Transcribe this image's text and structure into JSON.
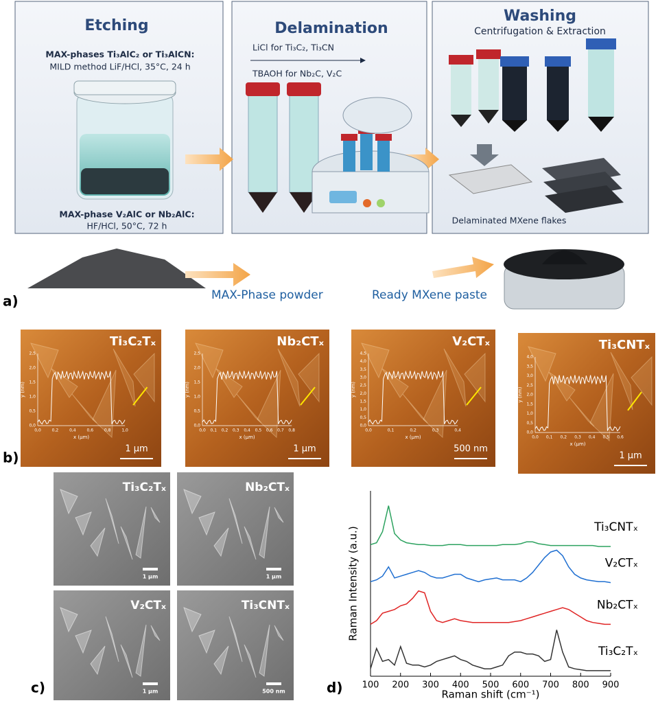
{
  "panel_a": {
    "label": "a)",
    "etching": {
      "title": "Etching",
      "line1": "MAX-phases Ti₃AlC₂ or Ti₃AlCN:",
      "line2": "MILD method LiF/HCl, 35°C, 24 h",
      "line3": "MAX-phase V₂AlC or Nb₂AlC:",
      "line4": "HF/HCl, 50°C, 72 h"
    },
    "delamination": {
      "title": "Delamination",
      "line1": "LiCl for Ti₃C₂, Ti₃CN",
      "line2": "TBAOH for Nb₂C, V₂C"
    },
    "washing": {
      "title": "Washing",
      "subtitle": "Centrifugation & Extraction",
      "caption": "Delaminated MXene flakes"
    },
    "powder": "MAX-Phase powder",
    "paste": "Ready MXene paste"
  },
  "panel_b": {
    "label": "b)",
    "ylabel": "y (nm)",
    "xlabel": "x (µm)",
    "images": [
      {
        "title": "Ti₃C₂Tₓ",
        "scale": "1 µm",
        "yticks": [
          "0,0",
          "0,5",
          "1,0",
          "1,5",
          "2,0",
          "2,5"
        ],
        "xticks": [
          "0,0",
          "0,2",
          "0,4",
          "0,6",
          "0,8",
          "1,0"
        ]
      },
      {
        "title": "Nb₂CTₓ",
        "scale": "1 µm",
        "yticks": [
          "0,0",
          "0,5",
          "1,0",
          "1,5",
          "2,0",
          "2,5"
        ],
        "xticks": [
          "0,0",
          "0,1",
          "0,2",
          "0,3",
          "0,4",
          "0,5",
          "0,6",
          "0,7",
          "0,8"
        ]
      },
      {
        "title": "V₂CTₓ",
        "scale": "500 nm",
        "yticks": [
          "0,0",
          "0,5",
          "1,0",
          "1,5",
          "2,0",
          "2,5",
          "3,0",
          "3,5",
          "4,0",
          "4,5"
        ],
        "xticks": [
          "0,0",
          "0,1",
          "0,2",
          "0,3",
          "0,4"
        ]
      },
      {
        "title": "Ti₃CNTₓ",
        "scale": "1 µm",
        "yticks": [
          "0,0",
          "0,5",
          "1,0",
          "1,5",
          "2,0",
          "2,5",
          "3,0",
          "3,5",
          "4,0"
        ],
        "xticks": [
          "0,0",
          "0,1",
          "0,2",
          "0,3",
          "0,4",
          "0,5",
          "0,6"
        ]
      }
    ]
  },
  "panel_c": {
    "label": "c)",
    "images": [
      {
        "title": "Ti₃C₂Tₓ",
        "scale": "1 µm"
      },
      {
        "title": "Nb₂CTₓ",
        "scale": "1 µm"
      },
      {
        "title": "V₂CTₓ",
        "scale": "1 µm"
      },
      {
        "title": "Ti₃CNTₓ",
        "scale": "500 nm"
      }
    ]
  },
  "chart_data": {
    "type": "line",
    "label": "d)",
    "xlabel": "Raman shift (cm⁻¹)",
    "ylabel": "Raman Intensity (a.u.)",
    "x": [
      100,
      120,
      140,
      160,
      180,
      200,
      220,
      240,
      260,
      280,
      300,
      320,
      340,
      360,
      380,
      400,
      420,
      440,
      460,
      480,
      500,
      520,
      540,
      560,
      580,
      600,
      620,
      640,
      660,
      680,
      700,
      720,
      740,
      760,
      780,
      800,
      820,
      840,
      860,
      880,
      900
    ],
    "xlim": [
      100,
      900
    ],
    "xticks": [
      100,
      200,
      300,
      400,
      500,
      600,
      700,
      800,
      900
    ],
    "ylim": [
      0,
      10
    ],
    "series": [
      {
        "name": "Ti₃CNTₓ",
        "color": "#2ca25f",
        "values": [
          7.1,
          7.2,
          7.8,
          9.2,
          7.7,
          7.35,
          7.2,
          7.15,
          7.1,
          7.1,
          7.05,
          7.05,
          7.05,
          7.1,
          7.1,
          7.1,
          7.05,
          7.05,
          7.05,
          7.05,
          7.05,
          7.05,
          7.1,
          7.1,
          7.1,
          7.15,
          7.25,
          7.25,
          7.15,
          7.1,
          7.05,
          7.05,
          7.05,
          7.05,
          7.05,
          7.05,
          7.05,
          7.05,
          7.0,
          7.0,
          7.0
        ]
      },
      {
        "name": "V₂CTₓ",
        "color": "#1f6fd1",
        "values": [
          5.1,
          5.2,
          5.4,
          5.9,
          5.3,
          5.4,
          5.5,
          5.6,
          5.7,
          5.6,
          5.4,
          5.3,
          5.3,
          5.4,
          5.5,
          5.5,
          5.3,
          5.2,
          5.1,
          5.2,
          5.25,
          5.3,
          5.2,
          5.2,
          5.2,
          5.1,
          5.3,
          5.6,
          6.0,
          6.4,
          6.7,
          6.8,
          6.5,
          5.9,
          5.5,
          5.3,
          5.2,
          5.15,
          5.1,
          5.1,
          5.05
        ]
      },
      {
        "name": "Nb₂CTₓ",
        "color": "#e02424",
        "values": [
          2.8,
          3.0,
          3.4,
          3.5,
          3.6,
          3.8,
          3.9,
          4.2,
          4.6,
          4.5,
          3.5,
          3.0,
          2.9,
          3.0,
          3.1,
          3.0,
          2.95,
          2.9,
          2.9,
          2.9,
          2.9,
          2.9,
          2.9,
          2.9,
          2.95,
          3.0,
          3.1,
          3.2,
          3.3,
          3.4,
          3.5,
          3.6,
          3.7,
          3.6,
          3.4,
          3.2,
          3.0,
          2.9,
          2.85,
          2.8,
          2.8
        ]
      },
      {
        "name": "Ti₃C₂Tₓ",
        "color": "#333333",
        "values": [
          0.4,
          1.5,
          0.8,
          0.9,
          0.6,
          1.6,
          0.7,
          0.6,
          0.6,
          0.5,
          0.6,
          0.8,
          0.9,
          1.0,
          1.1,
          0.9,
          0.8,
          0.6,
          0.5,
          0.4,
          0.4,
          0.5,
          0.6,
          1.1,
          1.3,
          1.3,
          1.2,
          1.2,
          1.1,
          0.8,
          0.9,
          2.5,
          1.3,
          0.5,
          0.4,
          0.35,
          0.3,
          0.3,
          0.3,
          0.3,
          0.3
        ]
      }
    ]
  }
}
